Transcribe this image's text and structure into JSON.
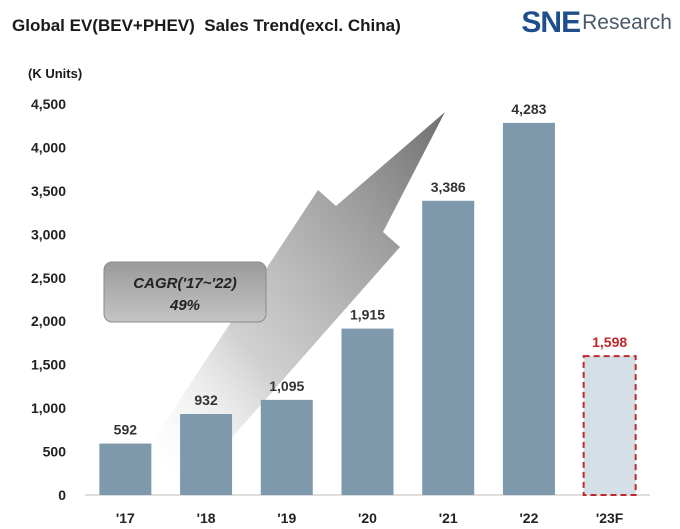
{
  "header": {
    "title": "Global EV(BEV+PHEV)  Sales Trend(excl. China)",
    "logo_sne": "SNE",
    "logo_research": "Research"
  },
  "chart_data": {
    "type": "bar",
    "title": "Global EV(BEV+PHEV)  Sales Trend(excl. China)",
    "ylabel": "(K Units)",
    "xlabel": "",
    "categories": [
      "'17",
      "'18",
      "'19",
      "'20",
      "'21",
      "'22",
      "'23F"
    ],
    "values": [
      592,
      932,
      1095,
      1915,
      3386,
      4283,
      1598
    ],
    "value_labels": [
      "592",
      "932",
      "1,095",
      "1,915",
      "3,386",
      "4,283",
      "1,598"
    ],
    "forecast_index": 6,
    "ylim": [
      0,
      4500
    ],
    "yticks": [
      0,
      500,
      1000,
      1500,
      2000,
      2500,
      3000,
      3500,
      4000,
      4500
    ],
    "ytick_labels": [
      "0",
      "500",
      "1,000",
      "1,500",
      "2,000",
      "2,500",
      "3,000",
      "3,500",
      "4,000",
      "4,500"
    ],
    "grid": false,
    "annotation": {
      "line1": "CAGR('17~'22)",
      "line2": "49%"
    },
    "colors": {
      "bar": "#7d99ab",
      "forecast_fill": "#d5dfe7",
      "forecast_border": "#c0282c",
      "forecast_label": "#c0282c",
      "label": "#333333"
    }
  }
}
